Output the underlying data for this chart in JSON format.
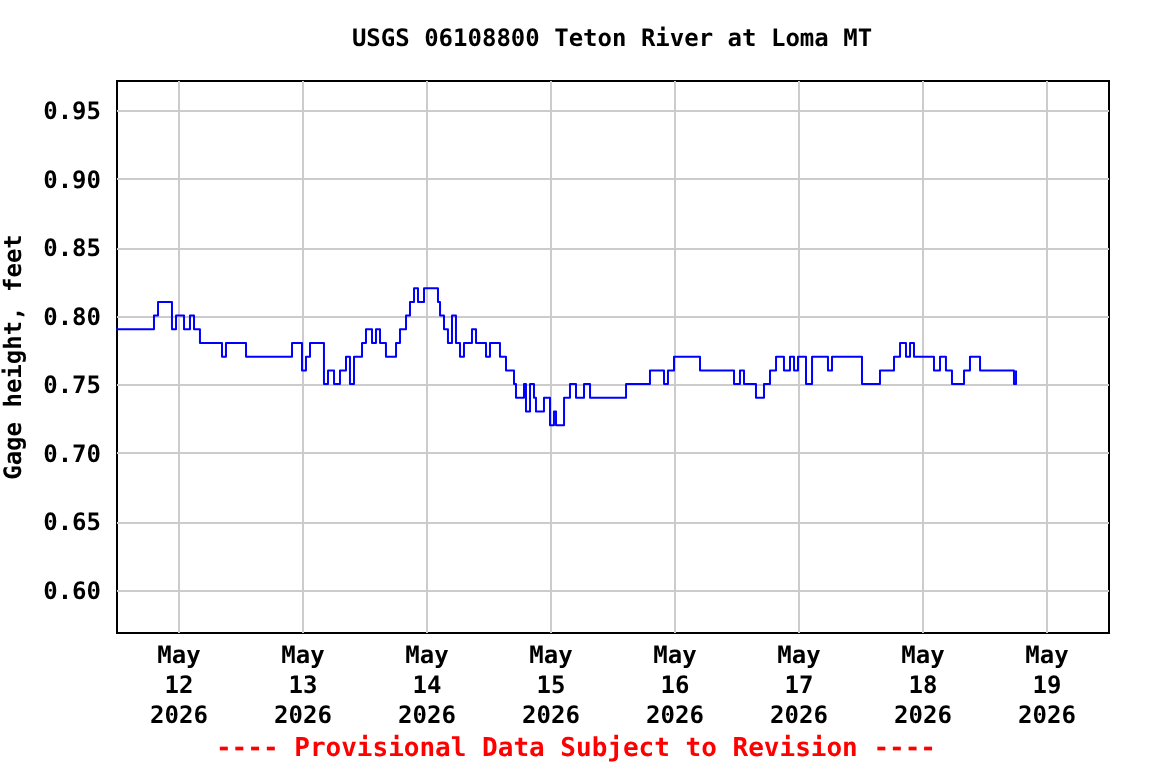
{
  "chart_data": {
    "type": "step",
    "title": "USGS 06108800 Teton River at Loma MT",
    "ylabel": "Gage height, feet",
    "annotations": [
      "---- Provisional Data Subject to Revision ----"
    ],
    "grid": true,
    "marker": "none",
    "line_style": "solid",
    "xlim": [
      "2026-05-11T12:00",
      "2026-05-19T12:00"
    ],
    "xticks": [
      {
        "value": "2026-05-12",
        "label": "May 12 2026"
      },
      {
        "value": "2026-05-13",
        "label": "May 13 2026"
      },
      {
        "value": "2026-05-14",
        "label": "May 14 2026"
      },
      {
        "value": "2026-05-15",
        "label": "May 15 2026"
      },
      {
        "value": "2026-05-16",
        "label": "May 16 2026"
      },
      {
        "value": "2026-05-17",
        "label": "May 17 2026"
      },
      {
        "value": "2026-05-18",
        "label": "May 18 2026"
      },
      {
        "value": "2026-05-19",
        "label": "May 19 2026"
      }
    ],
    "ylim": [
      0.569,
      0.972
    ],
    "yticks": [
      {
        "value": 0.6,
        "label": "0.60"
      },
      {
        "value": 0.65,
        "label": "0.65"
      },
      {
        "value": 0.7,
        "label": "0.70"
      },
      {
        "value": 0.75,
        "label": "0.75"
      },
      {
        "value": 0.8,
        "label": "0.80"
      },
      {
        "value": 0.85,
        "label": "0.85"
      },
      {
        "value": 0.9,
        "label": "0.90"
      },
      {
        "value": 0.95,
        "label": "0.95"
      }
    ],
    "x": [
      "2026-05-11T12:00",
      "2026-05-11T18:35",
      "2026-05-11T19:21",
      "2026-05-11T20:08",
      "2026-05-11T22:04",
      "2026-05-11T22:50",
      "2026-05-11T23:37",
      "2026-05-12T01:10",
      "2026-05-12T02:19",
      "2026-05-12T03:06",
      "2026-05-12T04:15",
      "2026-05-12T08:08",
      "2026-05-12T08:31",
      "2026-05-12T09:17",
      "2026-05-12T12:46",
      "2026-05-12T13:10",
      "2026-05-12T21:41",
      "2026-05-12T22:04",
      "2026-05-12T23:37",
      "2026-05-13T00:00",
      "2026-05-13T00:46",
      "2026-05-13T01:33",
      "2026-05-13T03:52",
      "2026-05-13T04:15",
      "2026-05-13T05:02",
      "2026-05-13T06:12",
      "2026-05-13T07:21",
      "2026-05-13T08:31",
      "2026-05-13T09:17",
      "2026-05-13T10:04",
      "2026-05-13T11:37",
      "2026-05-13T12:23",
      "2026-05-13T13:33",
      "2026-05-13T14:19",
      "2026-05-13T15:06",
      "2026-05-13T16:15",
      "2026-05-13T17:48",
      "2026-05-13T18:12",
      "2026-05-13T18:58",
      "2026-05-13T20:08",
      "2026-05-13T20:54",
      "2026-05-13T21:41",
      "2026-05-13T22:27",
      "2026-05-13T23:37",
      "2026-05-14T01:33",
      "2026-05-14T02:19",
      "2026-05-14T02:43",
      "2026-05-14T03:29",
      "2026-05-14T04:15",
      "2026-05-14T05:02",
      "2026-05-14T05:48",
      "2026-05-14T06:35",
      "2026-05-14T07:21",
      "2026-05-14T08:54",
      "2026-05-14T09:41",
      "2026-05-14T11:37",
      "2026-05-14T12:23",
      "2026-05-14T13:33",
      "2026-05-14T14:19",
      "2026-05-14T15:29",
      "2026-05-14T17:02",
      "2026-05-14T17:25",
      "2026-05-14T18:58",
      "2026-05-14T19:21",
      "2026-05-14T20:08",
      "2026-05-14T20:54",
      "2026-05-14T21:17",
      "2026-05-14T22:50",
      "2026-05-15T00:00",
      "2026-05-15T00:46",
      "2026-05-15T01:10",
      "2026-05-15T02:43",
      "2026-05-15T03:52",
      "2026-05-15T05:02",
      "2026-05-15T06:35",
      "2026-05-15T07:45",
      "2026-05-15T14:19",
      "2026-05-15T14:43",
      "2026-05-15T18:35",
      "2026-05-15T19:21",
      "2026-05-15T21:41",
      "2026-05-15T22:04",
      "2026-05-15T22:50",
      "2026-05-16T00:00",
      "2026-05-16T04:15",
      "2026-05-16T05:02",
      "2026-05-16T10:50",
      "2026-05-16T11:37",
      "2026-05-16T12:46",
      "2026-05-16T13:33",
      "2026-05-16T15:29",
      "2026-05-16T15:52",
      "2026-05-16T17:25",
      "2026-05-16T18:35",
      "2026-05-16T19:45",
      "2026-05-16T21:17",
      "2026-05-16T22:27",
      "2026-05-16T23:14",
      "2026-05-17T00:00",
      "2026-05-17T01:33",
      "2026-05-17T02:43",
      "2026-05-17T05:25",
      "2026-05-17T05:48",
      "2026-05-17T06:35",
      "2026-05-17T12:00",
      "2026-05-17T12:23",
      "2026-05-17T15:06",
      "2026-05-17T15:52",
      "2026-05-17T17:48",
      "2026-05-17T18:35",
      "2026-05-17T19:45",
      "2026-05-17T20:54",
      "2026-05-17T21:41",
      "2026-05-17T22:27",
      "2026-05-18T01:33",
      "2026-05-18T02:19",
      "2026-05-18T03:29",
      "2026-05-18T04:38",
      "2026-05-18T05:48",
      "2026-05-18T07:45",
      "2026-05-18T08:08",
      "2026-05-18T09:17",
      "2026-05-18T10:27",
      "2026-05-18T11:14",
      "2026-05-18T17:25",
      "2026-05-18T17:48",
      "2026-05-18T18:12"
    ],
    "series": [
      {
        "color": "#0000ff",
        "values": [
          0.79,
          0.79,
          0.8,
          0.81,
          0.81,
          0.79,
          0.8,
          0.79,
          0.8,
          0.79,
          0.78,
          0.78,
          0.77,
          0.78,
          0.78,
          0.77,
          0.77,
          0.78,
          0.78,
          0.76,
          0.77,
          0.78,
          0.78,
          0.75,
          0.76,
          0.75,
          0.76,
          0.77,
          0.75,
          0.77,
          0.78,
          0.79,
          0.78,
          0.79,
          0.78,
          0.77,
          0.77,
          0.78,
          0.79,
          0.8,
          0.81,
          0.82,
          0.81,
          0.82,
          0.82,
          0.81,
          0.8,
          0.79,
          0.78,
          0.8,
          0.78,
          0.77,
          0.78,
          0.79,
          0.78,
          0.77,
          0.78,
          0.78,
          0.77,
          0.76,
          0.75,
          0.74,
          0.75,
          0.73,
          0.75,
          0.74,
          0.73,
          0.74,
          0.72,
          0.73,
          0.72,
          0.74,
          0.75,
          0.74,
          0.75,
          0.74,
          0.74,
          0.75,
          0.75,
          0.76,
          0.76,
          0.75,
          0.76,
          0.77,
          0.77,
          0.76,
          0.76,
          0.75,
          0.76,
          0.75,
          0.75,
          0.74,
          0.75,
          0.76,
          0.77,
          0.76,
          0.77,
          0.76,
          0.77,
          0.75,
          0.77,
          0.77,
          0.76,
          0.77,
          0.77,
          0.75,
          0.75,
          0.76,
          0.76,
          0.77,
          0.78,
          0.77,
          0.78,
          0.77,
          0.77,
          0.76,
          0.77,
          0.76,
          0.75,
          0.75,
          0.76,
          0.77,
          0.77,
          0.76,
          0.76,
          0.75,
          0.76
        ]
      }
    ]
  }
}
